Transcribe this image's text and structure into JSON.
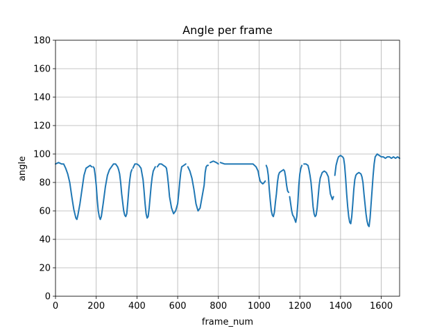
{
  "chart_data": {
    "type": "line",
    "title": "Angle per frame",
    "xlabel": "frame_num",
    "ylabel": "angle",
    "xlim": [
      0,
      1690
    ],
    "ylim": [
      0,
      180
    ],
    "xticks": [
      0,
      200,
      400,
      600,
      800,
      1000,
      1200,
      1400,
      1600
    ],
    "yticks": [
      0,
      20,
      40,
      60,
      80,
      100,
      120,
      140,
      160,
      180
    ],
    "grid": true,
    "line_color": "#1f77b4",
    "series": [
      {
        "segments": [
          [
            [
              0,
              93
            ],
            [
              15,
              94
            ],
            [
              30,
              93
            ],
            [
              40,
              93
            ],
            [
              50,
              90
            ],
            [
              60,
              86
            ],
            [
              70,
              80
            ],
            [
              80,
              70
            ],
            [
              90,
              61
            ],
            [
              100,
              55
            ],
            [
              105,
              54
            ],
            [
              110,
              57
            ],
            [
              120,
              65
            ],
            [
              130,
              75
            ],
            [
              140,
              85
            ],
            [
              150,
              90
            ],
            [
              160,
              91
            ],
            [
              170,
              92
            ],
            [
              178,
              91
            ]
          ],
          [
            [
              185,
              91
            ],
            [
              190,
              90
            ],
            [
              195,
              85
            ],
            [
              200,
              78
            ],
            [
              205,
              68
            ],
            [
              210,
              60
            ],
            [
              215,
              56
            ],
            [
              220,
              54
            ],
            [
              225,
              56
            ],
            [
              235,
              66
            ],
            [
              245,
              77
            ],
            [
              255,
              85
            ],
            [
              265,
              89
            ],
            [
              275,
              91
            ],
            [
              285,
              93
            ],
            [
              295,
              93
            ],
            [
              305,
              91
            ],
            [
              310,
              89
            ],
            [
              315,
              86
            ],
            [
              320,
              80
            ],
            [
              325,
              72
            ],
            [
              330,
              66
            ],
            [
              335,
              60
            ],
            [
              340,
              57
            ],
            [
              345,
              56
            ],
            [
              350,
              58
            ],
            [
              355,
              66
            ],
            [
              360,
              75
            ],
            [
              365,
              82
            ],
            [
              370,
              87
            ],
            [
              375,
              89
            ]
          ],
          [
            [
              380,
              90
            ],
            [
              390,
              93
            ],
            [
              400,
              93
            ],
            [
              410,
              92
            ],
            [
              420,
              90
            ],
            [
              430,
              82
            ],
            [
              435,
              74
            ],
            [
              440,
              65
            ],
            [
              445,
              58
            ],
            [
              450,
              55
            ],
            [
              455,
              56
            ],
            [
              460,
              62
            ],
            [
              465,
              70
            ],
            [
              470,
              78
            ],
            [
              475,
              84
            ],
            [
              480,
              88
            ],
            [
              490,
              91
            ]
          ],
          [
            [
              500,
              91
            ],
            [
              510,
              93
            ],
            [
              520,
              93
            ],
            [
              530,
              92
            ],
            [
              540,
              91
            ],
            [
              545,
              90
            ],
            [
              550,
              85
            ],
            [
              555,
              78
            ],
            [
              560,
              70
            ],
            [
              570,
              62
            ],
            [
              580,
              58
            ],
            [
              590,
              60
            ],
            [
              600,
              65
            ],
            [
              605,
              72
            ],
            [
              610,
              80
            ],
            [
              615,
              87
            ],
            [
              620,
              91
            ],
            [
              630,
              92
            ],
            [
              640,
              93
            ]
          ],
          [
            [
              650,
              91
            ],
            [
              660,
              88
            ],
            [
              670,
              83
            ],
            [
              680,
              75
            ],
            [
              690,
              65
            ],
            [
              700,
              60
            ],
            [
              710,
              62
            ],
            [
              720,
              70
            ],
            [
              730,
              78
            ],
            [
              735,
              87
            ],
            [
              740,
              91
            ],
            [
              745,
              92
            ],
            [
              750,
              92
            ]
          ],
          [
            [
              760,
              94
            ],
            [
              775,
              95
            ],
            [
              790,
              94
            ],
            [
              800,
              93
            ]
          ],
          [
            [
              810,
              94
            ],
            [
              830,
              93
            ],
            [
              850,
              93
            ],
            [
              870,
              93
            ],
            [
              890,
              93
            ],
            [
              910,
              93
            ],
            [
              930,
              93
            ],
            [
              950,
              93
            ],
            [
              970,
              93
            ],
            [
              985,
              91
            ],
            [
              995,
              88
            ],
            [
              1000,
              84
            ],
            [
              1005,
              81
            ],
            [
              1010,
              80
            ],
            [
              1018,
              79
            ],
            [
              1025,
              80
            ],
            [
              1030,
              81
            ]
          ],
          [
            [
              1035,
              92
            ],
            [
              1040,
              90
            ],
            [
              1045,
              85
            ],
            [
              1050,
              75
            ],
            [
              1055,
              67
            ],
            [
              1060,
              60
            ],
            [
              1065,
              57
            ],
            [
              1070,
              56
            ],
            [
              1075,
              59
            ],
            [
              1080,
              66
            ],
            [
              1085,
              72
            ],
            [
              1090,
              80
            ],
            [
              1095,
              85
            ],
            [
              1100,
              87
            ],
            [
              1110,
              88
            ],
            [
              1120,
              89
            ],
            [
              1125,
              88
            ],
            [
              1130,
              84
            ],
            [
              1135,
              78
            ],
            [
              1140,
              74
            ],
            [
              1145,
              73
            ]
          ],
          [
            [
              1150,
              70
            ],
            [
              1155,
              65
            ],
            [
              1160,
              60
            ],
            [
              1165,
              57
            ],
            [
              1170,
              56
            ],
            [
              1175,
              54
            ],
            [
              1180,
              52
            ],
            [
              1185,
              56
            ],
            [
              1190,
              65
            ],
            [
              1195,
              78
            ],
            [
              1200,
              86
            ],
            [
              1205,
              90
            ],
            [
              1210,
              92
            ]
          ],
          [
            [
              1220,
              93
            ],
            [
              1230,
              93
            ],
            [
              1240,
              92
            ],
            [
              1245,
              89
            ],
            [
              1250,
              85
            ],
            [
              1255,
              80
            ],
            [
              1260,
              72
            ],
            [
              1265,
              63
            ],
            [
              1270,
              58
            ],
            [
              1275,
              56
            ],
            [
              1280,
              57
            ],
            [
              1285,
              62
            ],
            [
              1290,
              70
            ],
            [
              1295,
              78
            ],
            [
              1300,
              83
            ],
            [
              1310,
              87
            ],
            [
              1320,
              88
            ],
            [
              1330,
              87
            ],
            [
              1340,
              84
            ],
            [
              1345,
              78
            ],
            [
              1350,
              72
            ],
            [
              1355,
              70
            ],
            [
              1360,
              68
            ],
            [
              1365,
              70
            ]
          ],
          [
            [
              1372,
              85
            ],
            [
              1378,
              92
            ],
            [
              1385,
              96
            ],
            [
              1390,
              98
            ],
            [
              1400,
              99
            ],
            [
              1410,
              98
            ],
            [
              1415,
              97
            ],
            [
              1420,
              92
            ],
            [
              1425,
              83
            ],
            [
              1430,
              72
            ],
            [
              1435,
              63
            ],
            [
              1440,
              56
            ],
            [
              1445,
              52
            ],
            [
              1450,
              51
            ],
            [
              1455,
              56
            ],
            [
              1460,
              65
            ],
            [
              1465,
              75
            ],
            [
              1470,
              82
            ],
            [
              1475,
              85
            ],
            [
              1480,
              86
            ],
            [
              1490,
              87
            ],
            [
              1500,
              86
            ],
            [
              1505,
              84
            ],
            [
              1510,
              80
            ],
            [
              1515,
              72
            ],
            [
              1520,
              65
            ],
            [
              1525,
              58
            ],
            [
              1530,
              53
            ],
            [
              1535,
              50
            ],
            [
              1540,
              49
            ],
            [
              1545,
              55
            ],
            [
              1550,
              65
            ],
            [
              1555,
              75
            ],
            [
              1560,
              85
            ],
            [
              1565,
              93
            ],
            [
              1570,
              98
            ],
            [
              1580,
              100
            ],
            [
              1590,
              99
            ],
            [
              1600,
              98
            ],
            [
              1610,
              98
            ],
            [
              1620,
              97
            ],
            [
              1630,
              98
            ],
            [
              1640,
              98
            ],
            [
              1650,
              97
            ],
            [
              1660,
              98
            ],
            [
              1670,
              97
            ],
            [
              1680,
              98
            ],
            [
              1690,
              97
            ]
          ]
        ]
      }
    ]
  }
}
